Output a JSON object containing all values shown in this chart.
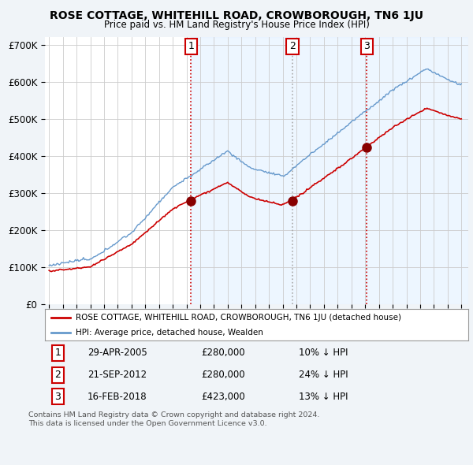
{
  "title": "ROSE COTTAGE, WHITEHILL ROAD, CROWBOROUGH, TN6 1JU",
  "subtitle": "Price paid vs. HM Land Registry's House Price Index (HPI)",
  "ylabel_ticks": [
    "£0",
    "£100K",
    "£200K",
    "£300K",
    "£400K",
    "£500K",
    "£600K",
    "£700K"
  ],
  "ytick_values": [
    0,
    100000,
    200000,
    300000,
    400000,
    500000,
    600000,
    700000
  ],
  "ylim": [
    0,
    720000
  ],
  "xlim_start": 1994.7,
  "xlim_end": 2025.5,
  "red_color": "#cc0000",
  "blue_color": "#6699cc",
  "blue_fill_color": "#ddeeff",
  "sale_points": [
    {
      "num": 1,
      "year": 2005.33,
      "price": 280000,
      "date": "29-APR-2005",
      "pct": "10%",
      "dir": "↓",
      "vline_color": "#cc0000",
      "vline_style": "dotted"
    },
    {
      "num": 2,
      "year": 2012.72,
      "price": 280000,
      "date": "21-SEP-2012",
      "pct": "24%",
      "dir": "↓",
      "vline_color": "#aaaaaa",
      "vline_style": "dotted"
    },
    {
      "num": 3,
      "year": 2018.12,
      "price": 423000,
      "date": "16-FEB-2018",
      "pct": "13%",
      "dir": "↓",
      "vline_color": "#cc0000",
      "vline_style": "dotted"
    }
  ],
  "legend_red_label": "ROSE COTTAGE, WHITEHILL ROAD, CROWBOROUGH, TN6 1JU (detached house)",
  "legend_blue_label": "HPI: Average price, detached house, Wealden",
  "table_rows": [
    {
      "num": "1",
      "date": "29-APR-2005",
      "price": "£280,000",
      "pct": "10% ↓ HPI"
    },
    {
      "num": "2",
      "date": "21-SEP-2012",
      "price": "£280,000",
      "pct": "24% ↓ HPI"
    },
    {
      "num": "3",
      "date": "16-FEB-2018",
      "price": "£423,000",
      "pct": "13% ↓ HPI"
    }
  ],
  "footer": "Contains HM Land Registry data © Crown copyright and database right 2024.\nThis data is licensed under the Open Government Licence v3.0.",
  "background_color": "#f0f4f8",
  "plot_bg_color": "#ffffff"
}
